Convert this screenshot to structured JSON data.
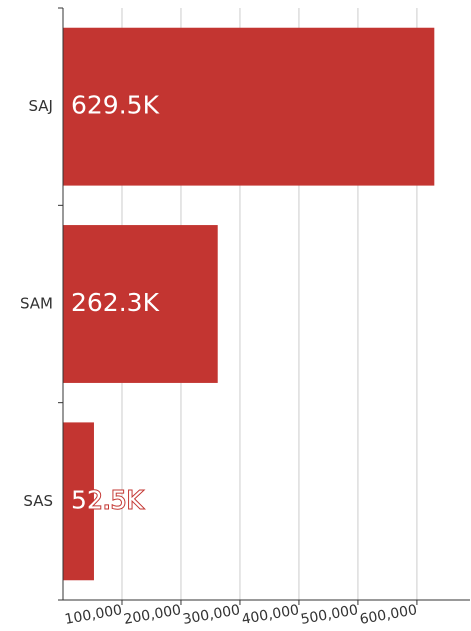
{
  "chart_data": {
    "type": "bar",
    "orientation": "horizontal",
    "categories": [
      "SAJ",
      "SAM",
      "SAS"
    ],
    "values": [
      629500,
      262300,
      52500
    ],
    "value_labels": [
      "629.5K",
      "262.3K",
      "52.5K"
    ],
    "color": "#c33531",
    "xlim": [
      0,
      690000
    ],
    "xticks": [
      {
        "value": 100000,
        "label": "100,000"
      },
      {
        "value": 200000,
        "label": "200,000"
      },
      {
        "value": 300000,
        "label": "300,000"
      },
      {
        "value": 400000,
        "label": "400,000"
      },
      {
        "value": 500000,
        "label": "500,000"
      },
      {
        "value": 600000,
        "label": "600,000"
      }
    ],
    "grid": true
  }
}
